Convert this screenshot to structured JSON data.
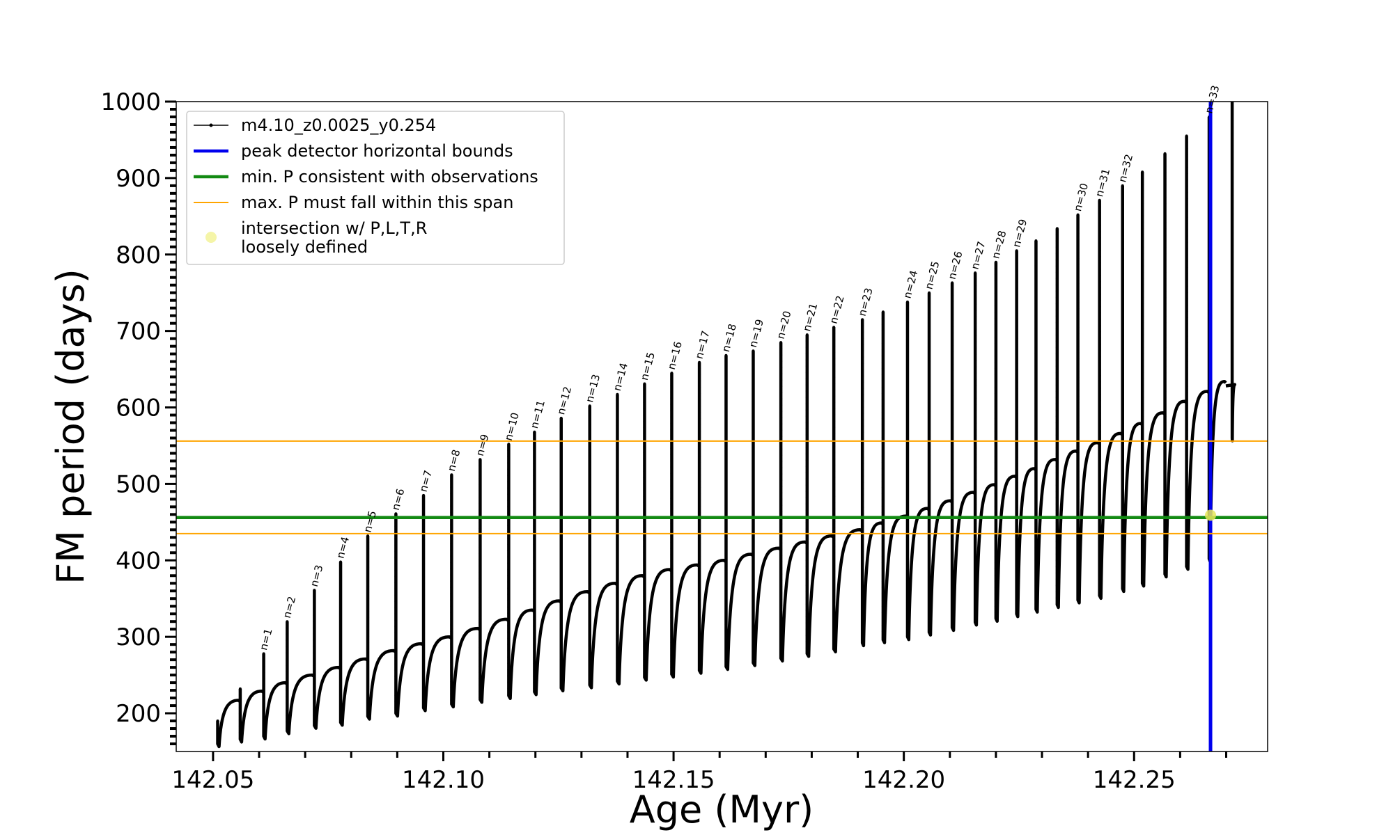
{
  "chart_data": {
    "type": "line",
    "title": "",
    "xlabel": "Age (Myr)",
    "ylabel": "FM period (days)",
    "xlim": [
      142.042,
      142.279
    ],
    "ylim": [
      150,
      1000
    ],
    "xticks": [
      "142.05",
      "142.10",
      "142.15",
      "142.20",
      "142.25"
    ],
    "yticks": [
      "200",
      "300",
      "400",
      "500",
      "600",
      "700",
      "800",
      "900",
      "1000"
    ],
    "grid": false,
    "legend_position": "upper-left",
    "series_name": "m4.10_z0.0025_y0.254",
    "series_color": "#000000",
    "cycles": [
      {
        "label": "",
        "x_start": 142.051,
        "y_min": 160,
        "y_peak": 190,
        "y_plateau": 217
      },
      {
        "label": "",
        "x_start": 142.0559,
        "y_min": 166,
        "y_peak": 232,
        "y_plateau": 229
      },
      {
        "label": "n=1",
        "x_start": 142.061,
        "y_min": 170,
        "y_peak": 278,
        "y_plateau": 240
      },
      {
        "label": "n=2",
        "x_start": 142.0661,
        "y_min": 177,
        "y_peak": 320,
        "y_plateau": 250
      },
      {
        "label": "n=3",
        "x_start": 142.072,
        "y_min": 184,
        "y_peak": 361,
        "y_plateau": 260
      },
      {
        "label": "n=4",
        "x_start": 142.0777,
        "y_min": 188,
        "y_peak": 398,
        "y_plateau": 271
      },
      {
        "label": "n=5",
        "x_start": 142.0836,
        "y_min": 196,
        "y_peak": 432,
        "y_plateau": 282
      },
      {
        "label": "n=6",
        "x_start": 142.0897,
        "y_min": 200,
        "y_peak": 461,
        "y_plateau": 291
      },
      {
        "label": "n=7",
        "x_start": 142.0957,
        "y_min": 207,
        "y_peak": 485,
        "y_plateau": 300
      },
      {
        "label": "n=8",
        "x_start": 142.1018,
        "y_min": 212,
        "y_peak": 512,
        "y_plateau": 311
      },
      {
        "label": "n=9",
        "x_start": 142.108,
        "y_min": 218,
        "y_peak": 532,
        "y_plateau": 323
      },
      {
        "label": "n=10",
        "x_start": 142.1142,
        "y_min": 223,
        "y_peak": 552,
        "y_plateau": 335
      },
      {
        "label": "n=11",
        "x_start": 142.1198,
        "y_min": 228,
        "y_peak": 568,
        "y_plateau": 347
      },
      {
        "label": "n=12",
        "x_start": 142.1256,
        "y_min": 233,
        "y_peak": 586,
        "y_plateau": 359
      },
      {
        "label": "n=13",
        "x_start": 142.1318,
        "y_min": 237,
        "y_peak": 602,
        "y_plateau": 370
      },
      {
        "label": "n=14",
        "x_start": 142.1378,
        "y_min": 242,
        "y_peak": 617,
        "y_plateau": 380
      },
      {
        "label": "n=15",
        "x_start": 142.1437,
        "y_min": 247,
        "y_peak": 631,
        "y_plateau": 388
      },
      {
        "label": "n=16",
        "x_start": 142.1496,
        "y_min": 251,
        "y_peak": 645,
        "y_plateau": 394
      },
      {
        "label": "n=17",
        "x_start": 142.1556,
        "y_min": 256,
        "y_peak": 659,
        "y_plateau": 400
      },
      {
        "label": "n=18",
        "x_start": 142.1614,
        "y_min": 261,
        "y_peak": 668,
        "y_plateau": 408
      },
      {
        "label": "n=19",
        "x_start": 142.1673,
        "y_min": 266,
        "y_peak": 674,
        "y_plateau": 416
      },
      {
        "label": "n=20",
        "x_start": 142.1733,
        "y_min": 272,
        "y_peak": 685,
        "y_plateau": 424
      },
      {
        "label": "n=21",
        "x_start": 142.179,
        "y_min": 278,
        "y_peak": 695,
        "y_plateau": 432
      },
      {
        "label": "n=22",
        "x_start": 142.1848,
        "y_min": 284,
        "y_peak": 705,
        "y_plateau": 440
      },
      {
        "label": "n=23",
        "x_start": 142.191,
        "y_min": 292,
        "y_peak": 715,
        "y_plateau": 449
      },
      {
        "label": "",
        "x_start": 142.1955,
        "y_min": 296,
        "y_peak": 725,
        "y_plateau": 458
      },
      {
        "label": "n=24",
        "x_start": 142.2008,
        "y_min": 300,
        "y_peak": 738,
        "y_plateau": 468
      },
      {
        "label": "n=25",
        "x_start": 142.2055,
        "y_min": 306,
        "y_peak": 750,
        "y_plateau": 478
      },
      {
        "label": "n=26",
        "x_start": 142.2105,
        "y_min": 312,
        "y_peak": 763,
        "y_plateau": 489
      },
      {
        "label": "n=27",
        "x_start": 142.2155,
        "y_min": 319,
        "y_peak": 776,
        "y_plateau": 499
      },
      {
        "label": "n=28",
        "x_start": 142.22,
        "y_min": 324,
        "y_peak": 790,
        "y_plateau": 510
      },
      {
        "label": "n=29",
        "x_start": 142.2245,
        "y_min": 330,
        "y_peak": 805,
        "y_plateau": 520
      },
      {
        "label": "",
        "x_start": 142.2287,
        "y_min": 336,
        "y_peak": 818,
        "y_plateau": 532
      },
      {
        "label": "",
        "x_start": 142.2333,
        "y_min": 342,
        "y_peak": 834,
        "y_plateau": 543
      },
      {
        "label": "n=30",
        "x_start": 142.2378,
        "y_min": 348,
        "y_peak": 852,
        "y_plateau": 554
      },
      {
        "label": "n=31",
        "x_start": 142.2425,
        "y_min": 354,
        "y_peak": 871,
        "y_plateau": 566
      },
      {
        "label": "n=32",
        "x_start": 142.2475,
        "y_min": 363,
        "y_peak": 890,
        "y_plateau": 579
      },
      {
        "label": "",
        "x_start": 142.2518,
        "y_min": 370,
        "y_peak": 908,
        "y_plateau": 593
      },
      {
        "label": "",
        "x_start": 142.2567,
        "y_min": 382,
        "y_peak": 932,
        "y_plateau": 608
      },
      {
        "label": "",
        "x_start": 142.2614,
        "y_min": 392,
        "y_peak": 955,
        "y_plateau": 621
      },
      {
        "label": "n=33",
        "x_start": 142.2663,
        "y_min": 402,
        "y_peak": 980,
        "y_plateau": 634
      },
      {
        "label": "",
        "x_start": 142.2713,
        "y_min": 560,
        "y_peak": 1000,
        "y_plateau": 630
      }
    ],
    "reference_lines": [
      {
        "name": "peak detector horizontal bounds",
        "orientation": "vertical",
        "value": 142.2666,
        "color": "#0000ee"
      },
      {
        "name": "min. P consistent with observations",
        "orientation": "horizontal",
        "value": 456,
        "color": "#138a13"
      },
      {
        "name": "max. P must fall within this span",
        "orientation": "horizontal",
        "values": [
          435,
          556
        ],
        "color": "#ffa500"
      }
    ],
    "intersection_points": [
      {
        "x": 142.2666,
        "y": 459,
        "color": "#e6e65a"
      }
    ],
    "legend": [
      {
        "label": "m4.10_z0.0025_y0.254",
        "style": "marker-line",
        "color": "#000000"
      },
      {
        "label": "peak detector horizontal bounds",
        "style": "line",
        "color": "#0000ee"
      },
      {
        "label": "min. P consistent with observations",
        "style": "line",
        "color": "#138a13"
      },
      {
        "label": "max. P must fall within this span",
        "style": "thin-line",
        "color": "#ffa500"
      },
      {
        "label": "intersection w/ P,L,T,R",
        "label2": "loosely defined",
        "style": "dot",
        "color": "#f5f5a8"
      }
    ]
  }
}
